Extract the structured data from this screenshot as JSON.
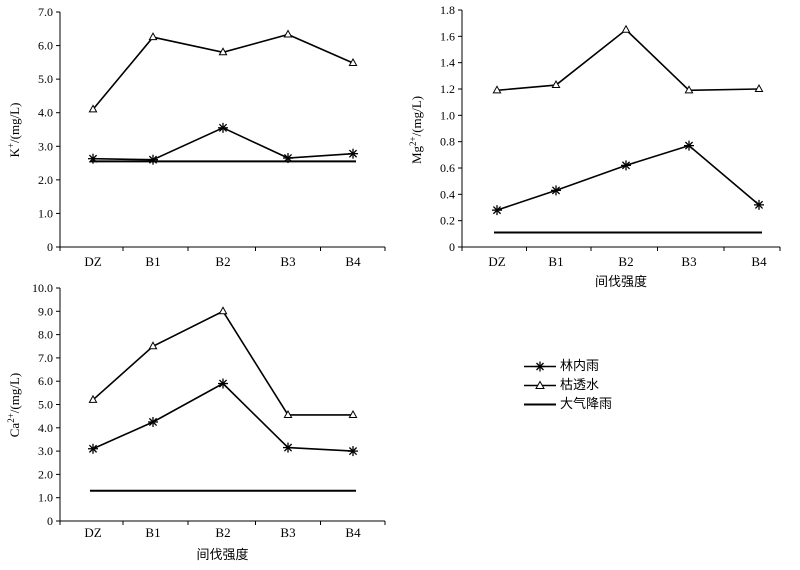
{
  "chart_data": [
    {
      "type": "line",
      "ylabel_main": "K",
      "ylabel_sup": "+",
      "ylabel_unit": "/(mg/L)",
      "xlabel": "",
      "categories": [
        "DZ",
        "B1",
        "B2",
        "B3",
        "B4"
      ],
      "ylim": [
        0,
        7
      ],
      "yticks": [
        "0",
        "1.0",
        "2.0",
        "3.0",
        "4.0",
        "5.0",
        "6.0",
        "7.0"
      ],
      "series": [
        {
          "key": "throughfall",
          "values": [
            2.63,
            2.6,
            3.55,
            2.65,
            2.78
          ]
        },
        {
          "key": "litter",
          "values": [
            4.1,
            6.25,
            5.8,
            6.33,
            5.48
          ]
        },
        {
          "key": "precip",
          "values": [
            2.55,
            2.55,
            2.55,
            2.55,
            2.55
          ]
        }
      ]
    },
    {
      "type": "line",
      "ylabel_main": "Mg",
      "ylabel_sup": "2+",
      "ylabel_unit": "/(mg/L)",
      "xlabel": "间伐强度",
      "categories": [
        "DZ",
        "B1",
        "B2",
        "B3",
        "B4"
      ],
      "ylim": [
        0,
        1.8
      ],
      "yticks": [
        "0",
        "0.2",
        "0.4",
        "0.6",
        "0.8",
        "1.0",
        "1.2",
        "1.4",
        "1.6",
        "1.8"
      ],
      "series": [
        {
          "key": "throughfall",
          "values": [
            0.28,
            0.43,
            0.62,
            0.77,
            0.32
          ]
        },
        {
          "key": "litter",
          "values": [
            1.19,
            1.23,
            1.65,
            1.19,
            1.2
          ]
        },
        {
          "key": "precip",
          "values": [
            0.11,
            0.11,
            0.11,
            0.11,
            0.11
          ]
        }
      ]
    },
    {
      "type": "line",
      "ylabel_main": "Ca",
      "ylabel_sup": "2+",
      "ylabel_unit": "/(mg/L)",
      "xlabel": "间伐强度",
      "categories": [
        "DZ",
        "B1",
        "B2",
        "B3",
        "B4"
      ],
      "ylim": [
        0,
        10
      ],
      "yticks": [
        "0",
        "1.0",
        "2.0",
        "3.0",
        "4.0",
        "5.0",
        "6.0",
        "7.0",
        "8.0",
        "9.0",
        "10.0"
      ],
      "series": [
        {
          "key": "throughfall",
          "values": [
            3.1,
            4.25,
            5.9,
            3.15,
            3.0
          ]
        },
        {
          "key": "litter",
          "values": [
            5.2,
            7.5,
            9.0,
            4.55,
            4.55
          ]
        },
        {
          "key": "precip",
          "values": [
            1.3,
            1.3,
            1.3,
            1.3,
            1.3
          ]
        }
      ]
    }
  ],
  "legend": {
    "throughfall": "林内雨",
    "litter": "枯透水",
    "precip": "大气降雨"
  }
}
